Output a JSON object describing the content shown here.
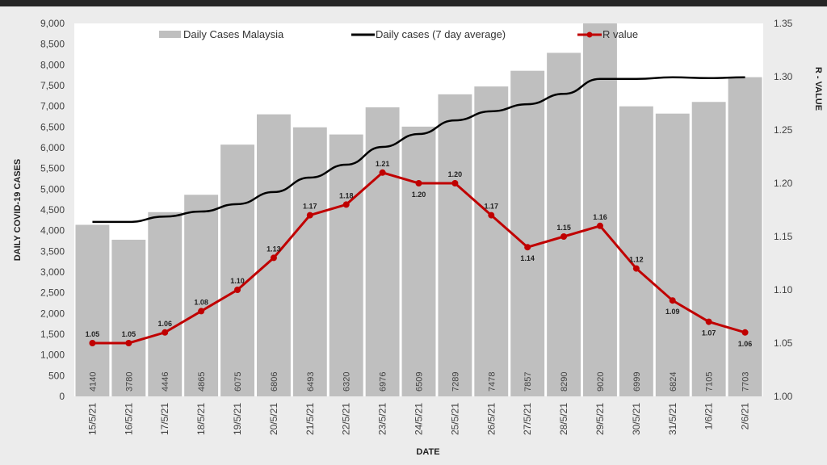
{
  "chart_data": {
    "type": "bar+line",
    "title": "",
    "xlabel": "DATE",
    "ylabel": "DAILY COVID-19 CASES",
    "y2label": "R - VALUE",
    "ylim": [
      0,
      9000
    ],
    "y2lim": [
      1.0,
      1.35
    ],
    "yticks": [
      "0",
      "500",
      "1,000",
      "1,500",
      "2,000",
      "2,500",
      "3,000",
      "3,500",
      "4,000",
      "4,500",
      "5,000",
      "5,500",
      "6,000",
      "6,500",
      "7,000",
      "7,500",
      "8,000",
      "8,500",
      "9,000"
    ],
    "y2ticks": [
      "1.00",
      "1.05",
      "1.10",
      "1.15",
      "1.20",
      "1.25",
      "1.30",
      "1.35"
    ],
    "legend_position": "top",
    "categories": [
      "15/5/21",
      "16/5/21",
      "17/5/21",
      "18/5/21",
      "19/5/21",
      "20/5/21",
      "21/5/21",
      "22/5/21",
      "23/5/21",
      "24/5/21",
      "25/5/21",
      "26/5/21",
      "27/5/21",
      "28/5/21",
      "29/5/21",
      "30/5/21",
      "31/5/21",
      "1/6/21",
      "2/6/21"
    ],
    "series": [
      {
        "name": "Daily Cases Malaysia",
        "type": "bar",
        "axis": "left",
        "color": "#bfbfbf",
        "values": [
          4140,
          3780,
          4446,
          4865,
          6075,
          6806,
          6493,
          6320,
          6976,
          6509,
          7289,
          7478,
          7857,
          8290,
          9020,
          6999,
          6824,
          7105,
          7703
        ]
      },
      {
        "name": "Daily cases (7 day average)",
        "type": "line",
        "axis": "left",
        "color": "#000000",
        "values": [
          4210,
          4210,
          4340,
          4460,
          4640,
          4930,
          5280,
          5590,
          6020,
          6330,
          6660,
          6880,
          7050,
          7300,
          7660,
          7660,
          7700,
          7680,
          7700
        ]
      },
      {
        "name": "R value",
        "type": "line",
        "axis": "right",
        "color": "#c00000",
        "values": [
          1.05,
          1.05,
          1.06,
          1.08,
          1.1,
          1.13,
          1.17,
          1.18,
          1.21,
          1.2,
          1.2,
          1.17,
          1.14,
          1.15,
          1.16,
          1.12,
          1.09,
          1.07,
          1.06
        ]
      }
    ]
  }
}
